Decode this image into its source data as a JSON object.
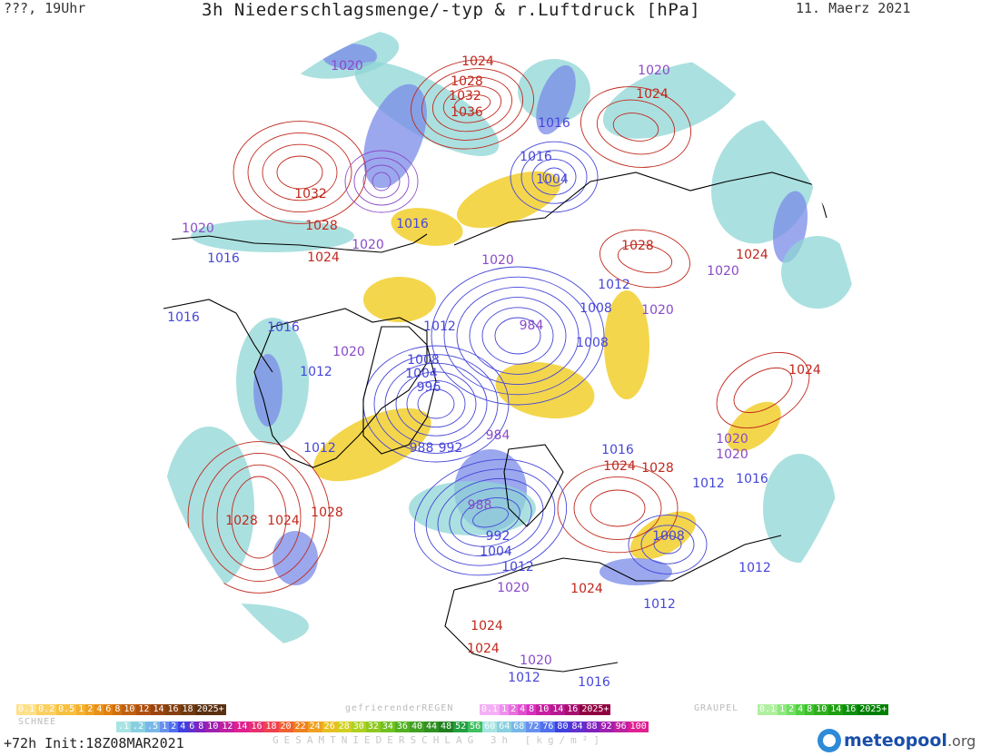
{
  "header": {
    "left": "???, 19Uhr",
    "title": "3h Niederschlagsmenge/-typ & r.Luftdruck [hPa]",
    "date": "11. Maerz 2021"
  },
  "colors": {
    "high_isobar": "#c0281c",
    "low_isobar": "#4646d8",
    "mid_isobar": "#8a4ac8",
    "coast": "#000000",
    "snow": "#f0c810",
    "rain_light": "#8fd6d6",
    "rain_mod": "#7a8be8",
    "rain_heavy": "#6a3cd0"
  },
  "pressure_labels": [
    {
      "text": "1020",
      "type": "mid"
    },
    {
      "text": "1024",
      "type": "high"
    },
    {
      "text": "1028",
      "type": "high"
    },
    {
      "text": "1032",
      "type": "high"
    },
    {
      "text": "1036",
      "type": "high"
    },
    {
      "text": "1020",
      "type": "mid"
    },
    {
      "text": "1024",
      "type": "high"
    },
    {
      "text": "1016",
      "type": "low"
    },
    {
      "text": "1016",
      "type": "low"
    },
    {
      "text": "1004",
      "type": "low"
    },
    {
      "text": "1032",
      "type": "high"
    },
    {
      "text": "1020",
      "type": "mid"
    },
    {
      "text": "1028",
      "type": "high"
    },
    {
      "text": "1016",
      "type": "low"
    },
    {
      "text": "1020",
      "type": "mid"
    },
    {
      "text": "1024",
      "type": "high"
    },
    {
      "text": "1016",
      "type": "low"
    },
    {
      "text": "1020",
      "type": "mid"
    },
    {
      "text": "1028",
      "type": "high"
    },
    {
      "text": "1024",
      "type": "high"
    },
    {
      "text": "1020",
      "type": "mid"
    },
    {
      "text": "1012",
      "type": "low"
    },
    {
      "text": "1008",
      "type": "low"
    },
    {
      "text": "1020",
      "type": "mid"
    },
    {
      "text": "1016",
      "type": "low"
    },
    {
      "text": "1016",
      "type": "low"
    },
    {
      "text": "1012",
      "type": "low"
    },
    {
      "text": "984",
      "type": "mid"
    },
    {
      "text": "1008",
      "type": "low"
    },
    {
      "text": "1024",
      "type": "high"
    },
    {
      "text": "1020",
      "type": "mid"
    },
    {
      "text": "1008",
      "type": "low"
    },
    {
      "text": "1004",
      "type": "low"
    },
    {
      "text": "996",
      "type": "low"
    },
    {
      "text": "1012",
      "type": "low"
    },
    {
      "text": "984",
      "type": "mid"
    },
    {
      "text": "1012",
      "type": "low"
    },
    {
      "text": "988",
      "type": "low"
    },
    {
      "text": "992",
      "type": "low"
    },
    {
      "text": "1016",
      "type": "low"
    },
    {
      "text": "1024",
      "type": "high"
    },
    {
      "text": "1028",
      "type": "high"
    },
    {
      "text": "1020",
      "type": "mid"
    },
    {
      "text": "1020",
      "type": "mid"
    },
    {
      "text": "1016",
      "type": "low"
    },
    {
      "text": "1012",
      "type": "low"
    },
    {
      "text": "1028",
      "type": "high"
    },
    {
      "text": "1024",
      "type": "high"
    },
    {
      "text": "1028",
      "type": "high"
    },
    {
      "text": "988",
      "type": "mid"
    },
    {
      "text": "992",
      "type": "low"
    },
    {
      "text": "1004",
      "type": "low"
    },
    {
      "text": "1008",
      "type": "low"
    },
    {
      "text": "1012",
      "type": "low"
    },
    {
      "text": "1020",
      "type": "mid"
    },
    {
      "text": "1024",
      "type": "high"
    },
    {
      "text": "1012",
      "type": "low"
    },
    {
      "text": "1012",
      "type": "low"
    },
    {
      "text": "1024",
      "type": "high"
    },
    {
      "text": "1024",
      "type": "high"
    },
    {
      "text": "1020",
      "type": "mid"
    },
    {
      "text": "1012",
      "type": "low"
    },
    {
      "text": "1016",
      "type": "low"
    }
  ],
  "legend": {
    "snow_label": "SCHNEE",
    "snow_values": [
      "0.1",
      "0.2",
      "0.5",
      "1",
      "2",
      "4",
      "6",
      "8",
      "10",
      "12",
      "14",
      "16",
      "18",
      "2025+"
    ],
    "freezing_rain_label": "gefrierenderREGEN",
    "freezing_rain_values": [
      "0.1",
      "1",
      "2",
      "4",
      "8",
      "10",
      "14",
      "16",
      "2025+"
    ],
    "graupel_label": "GRAUPEL",
    "graupel_values": [
      "0.1",
      "1",
      "2",
      "4",
      "8",
      "10",
      "14",
      "16",
      "2025+"
    ],
    "total_values": [
      ".1",
      ".2",
      ".5",
      "1",
      "2",
      "4",
      "6",
      "8",
      "10",
      "12",
      "14",
      "16",
      "18",
      "20",
      "22",
      "24",
      "26",
      "28",
      "30",
      "32",
      "34",
      "36",
      "40",
      "44",
      "48",
      "52",
      "56",
      "60",
      "64",
      "68",
      "72",
      "76",
      "80",
      "84",
      "88",
      "92",
      "96",
      "100"
    ],
    "total_caption": "GESAMTNIEDERSCHLAG 3h [kg/m²]"
  },
  "footer": {
    "init": "+72h Init:18Z08MAR2021",
    "brand_name": "meteopool",
    "brand_tld": ".org"
  }
}
